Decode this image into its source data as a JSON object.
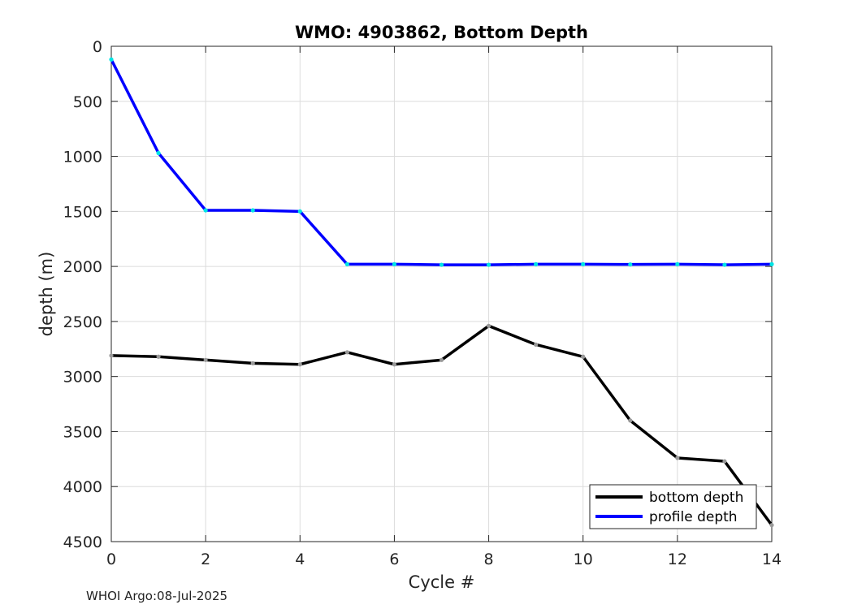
{
  "chart_data": {
    "type": "line",
    "title": "WMO: 4903862, Bottom Depth",
    "xlabel": "Cycle #",
    "ylabel": "depth (m)",
    "xlim": [
      0,
      14
    ],
    "ylim": [
      0,
      4500
    ],
    "y_reversed": true,
    "grid": true,
    "xticks": [
      "0",
      "2",
      "4",
      "6",
      "8",
      "10",
      "12",
      "14"
    ],
    "yticks": [
      "0",
      "500",
      "1000",
      "1500",
      "2000",
      "2500",
      "3000",
      "3500",
      "4000",
      "4500"
    ],
    "legend_position": "bottom-right",
    "series": [
      {
        "name": "bottom depth",
        "color": "#000000",
        "marker_color": "#999999",
        "x": [
          0,
          1,
          2,
          3,
          4,
          5,
          6,
          7,
          8,
          9,
          10,
          11,
          12,
          13,
          14
        ],
        "y": [
          2810,
          2820,
          2850,
          2880,
          2890,
          2780,
          2890,
          2850,
          2540,
          2710,
          2820,
          3400,
          3740,
          3770,
          4350
        ]
      },
      {
        "name": "profile depth",
        "color": "#0000ff",
        "marker_color": "#00e5e5",
        "x": [
          0,
          1,
          2,
          3,
          4,
          5,
          6,
          7,
          8,
          9,
          10,
          11,
          12,
          13,
          14
        ],
        "y": [
          120,
          970,
          1490,
          1490,
          1500,
          1980,
          1980,
          1985,
          1985,
          1980,
          1980,
          1982,
          1980,
          1985,
          1980
        ]
      }
    ]
  },
  "footer": "WHOI Argo:08-Jul-2025"
}
